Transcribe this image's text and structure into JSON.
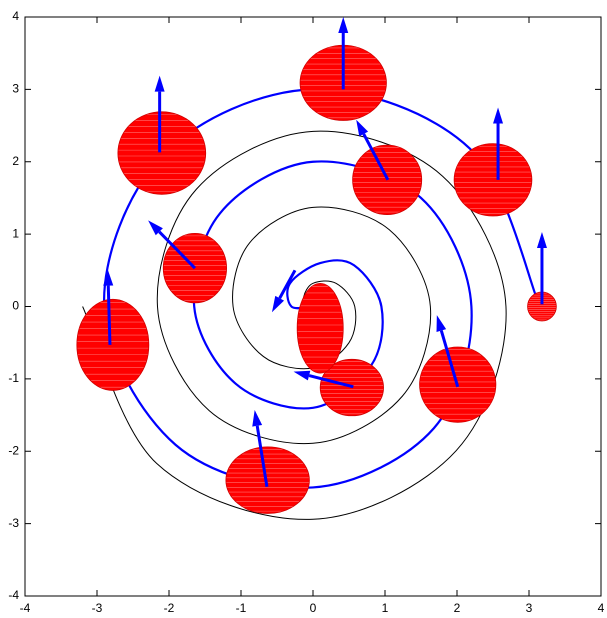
{
  "chart_data": {
    "type": "line",
    "xlim": [
      -4,
      4
    ],
    "ylim": [
      -4,
      4
    ],
    "xticks": [
      -4,
      -3,
      -2,
      -1,
      0,
      1,
      2,
      3,
      4
    ],
    "yticks": [
      -4,
      -3,
      -2,
      -1,
      0,
      1,
      2,
      3,
      4
    ],
    "series": [
      {
        "color": "#000000",
        "x": [
          -0.06,
          -0.13,
          0,
          0.32,
          0.58,
          0.5,
          0,
          -0.69,
          -1.11,
          -0.88,
          0,
          1.06,
          1.63,
          1.24,
          0,
          -1.44,
          -2.16,
          -1.62,
          0,
          1.8,
          2.68,
          1.99,
          0,
          -2.17,
          -3.2
        ],
        "y": [
          0,
          0.13,
          0.32,
          0.32,
          0,
          -0.5,
          -0.85,
          -0.69,
          0,
          0.88,
          1.37,
          1.06,
          0,
          -1.24,
          -1.89,
          -1.44,
          0,
          1.62,
          2.42,
          1.8,
          0,
          -1.99,
          -2.94,
          -2.17,
          0
        ]
      },
      {
        "color": "#0000ff",
        "x": [
          0,
          -0.3,
          -0.32,
          0.1,
          0.57,
          0.95,
          0.81,
          0,
          -1.07,
          -1.65,
          -1.29,
          0,
          1.5,
          2.2,
          1.68,
          0,
          -1.91,
          -2.9,
          -2.09,
          0,
          2.18,
          3.15
        ],
        "y": [
          0,
          0,
          0.32,
          0.6,
          0.57,
          0,
          -0.81,
          -1.4,
          -1.07,
          0,
          1.29,
          2.0,
          1.5,
          0,
          -1.68,
          -2.5,
          -1.91,
          0,
          2.09,
          3.0,
          2.18,
          0
        ]
      }
    ],
    "ellipses": {
      "color": "#ff0000",
      "items": [
        {
          "x": 3.18,
          "y": 0.0,
          "rx": 0.2,
          "ry": 0.2
        },
        {
          "x": 2.5,
          "y": 1.75,
          "rx": 0.54,
          "ry": 0.5
        },
        {
          "x": 0.42,
          "y": 3.09,
          "rx": 0.6,
          "ry": 0.52
        },
        {
          "x": 1.03,
          "y": 1.75,
          "rx": 0.48,
          "ry": 0.48
        },
        {
          "x": -2.1,
          "y": 2.12,
          "rx": 0.61,
          "ry": 0.57
        },
        {
          "x": -1.64,
          "y": 0.53,
          "rx": 0.44,
          "ry": 0.48
        },
        {
          "x": -2.78,
          "y": -0.53,
          "rx": 0.5,
          "ry": 0.63
        },
        {
          "x": -0.63,
          "y": -2.4,
          "rx": 0.58,
          "ry": 0.46
        },
        {
          "x": 2.01,
          "y": -1.08,
          "rx": 0.53,
          "ry": 0.52
        },
        {
          "x": 0.54,
          "y": -1.12,
          "rx": 0.44,
          "ry": 0.39
        },
        {
          "x": 0.1,
          "y": -0.3,
          "rx": 0.32,
          "ry": 0.62
        }
      ]
    },
    "arrows": {
      "color": "#0000ff",
      "items": [
        {
          "x": 3.18,
          "y": 0.03,
          "dx": 0,
          "dy": 1.0
        },
        {
          "x": 2.57,
          "y": 1.75,
          "dx": 0,
          "dy": 1.0
        },
        {
          "x": 0.42,
          "y": 3.0,
          "dx": 0,
          "dy": 1.0
        },
        {
          "x": 1.04,
          "y": 1.75,
          "dx": -0.44,
          "dy": 0.83
        },
        {
          "x": -2.13,
          "y": 2.13,
          "dx": 0,
          "dy": 1.06
        },
        {
          "x": -1.64,
          "y": 0.53,
          "dx": -0.65,
          "dy": 0.66
        },
        {
          "x": -2.82,
          "y": -0.53,
          "dx": -0.03,
          "dy": 1.04
        },
        {
          "x": -0.64,
          "y": -2.49,
          "dx": -0.17,
          "dy": 1.06
        },
        {
          "x": 2.01,
          "y": -1.11,
          "dx": -0.29,
          "dy": 0.99
        },
        {
          "x": 0.56,
          "y": -1.11,
          "dx": -0.83,
          "dy": 0.21
        },
        {
          "x": -0.25,
          "y": 0.5,
          "dx": -0.32,
          "dy": -0.58
        }
      ]
    }
  }
}
